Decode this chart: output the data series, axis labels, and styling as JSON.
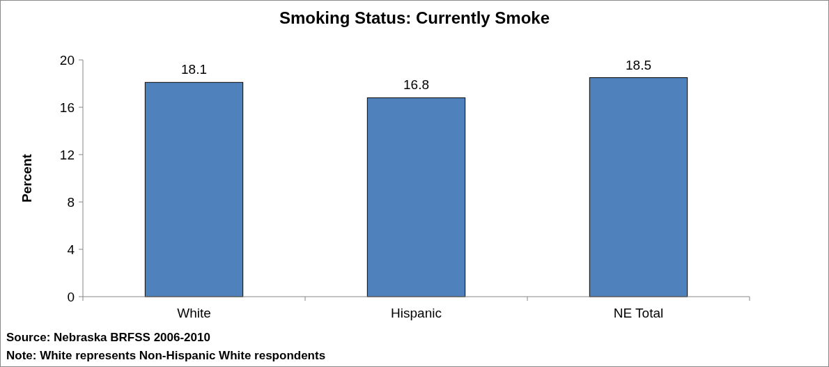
{
  "chart_data": {
    "type": "bar",
    "title": "Smoking Status: Currently Smoke",
    "ylabel": "Percent",
    "categories": [
      "White",
      "Hispanic",
      "NE Total"
    ],
    "values": [
      18.1,
      16.8,
      18.5
    ],
    "color": "#4f81bd",
    "ylim": [
      0,
      20
    ],
    "yticks": [
      0,
      4,
      8,
      12,
      16,
      20
    ],
    "grid": false,
    "data_labels": true,
    "annotations": [
      "Source: Nebraska BRFSS 2006-2010",
      "Note: White represents Non-Hispanic White respondents"
    ]
  }
}
